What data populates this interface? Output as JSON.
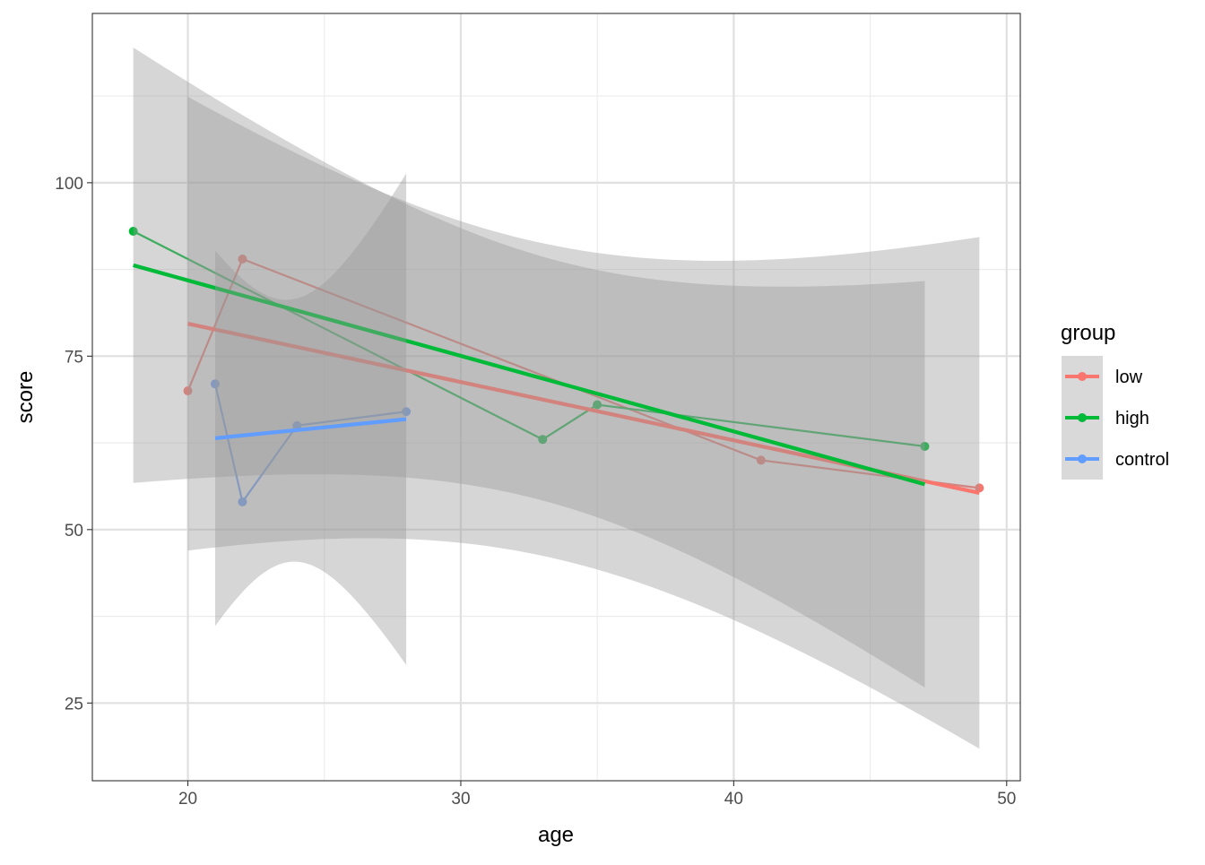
{
  "chart_data": {
    "type": "scatter",
    "layers": [
      "point",
      "line",
      "smooth (linear fit with confidence band)"
    ],
    "xlabel": "age",
    "ylabel": "score",
    "xlim": [
      16.5,
      50.5
    ],
    "ylim": [
      13.8,
      124.4
    ],
    "x_ticks": [
      20,
      30,
      40,
      50
    ],
    "y_ticks": [
      25,
      50,
      75,
      100
    ],
    "grid": true,
    "legend_title": "group",
    "legend_position": "right",
    "series": [
      {
        "name": "low",
        "color": "#F8766D",
        "x": [
          20,
          22,
          41,
          49
        ],
        "y": [
          70,
          89,
          60,
          56
        ]
      },
      {
        "name": "high",
        "color": "#00BA38",
        "x": [
          18,
          33,
          35,
          47
        ],
        "y": [
          93,
          63,
          68,
          62
        ]
      },
      {
        "name": "control",
        "color": "#619CFF",
        "x": [
          21,
          22,
          24,
          28
        ],
        "y": [
          71,
          54,
          65,
          67
        ]
      }
    ],
    "ribbon_color": "#999999"
  }
}
